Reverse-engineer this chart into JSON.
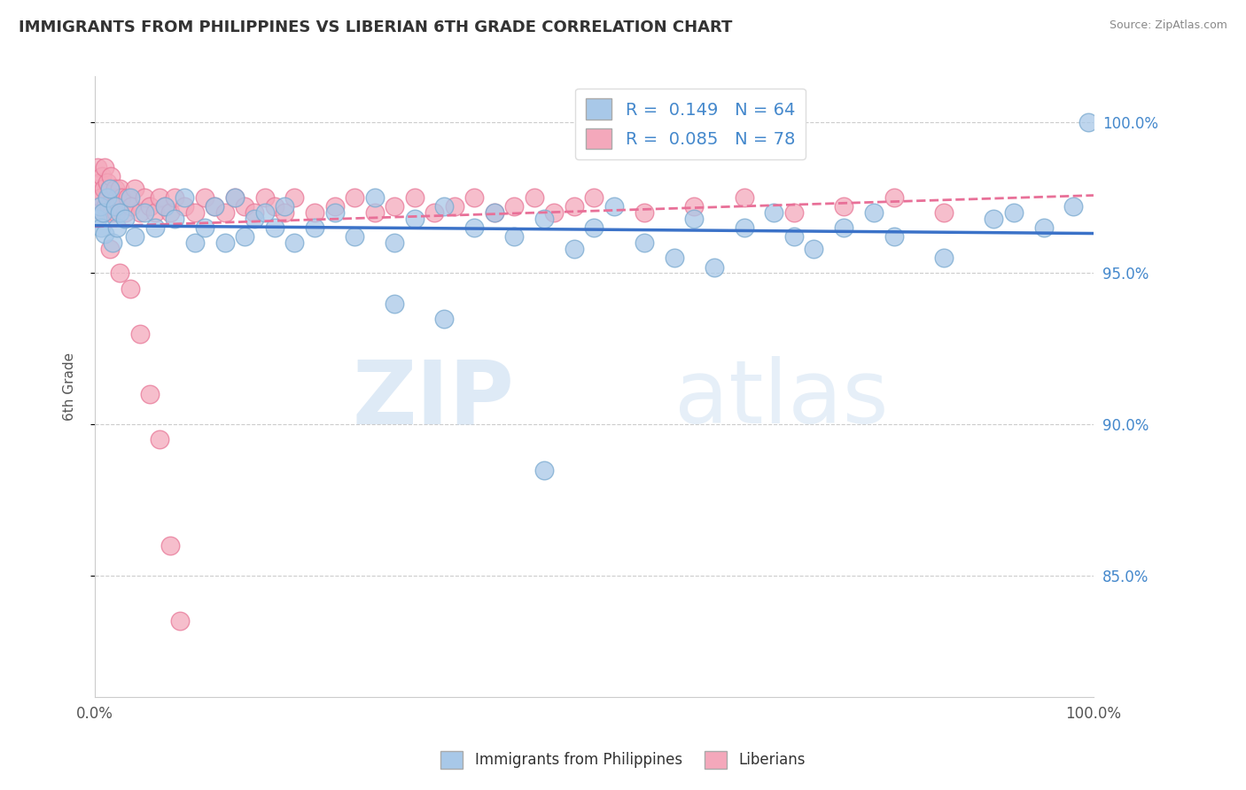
{
  "title": "IMMIGRANTS FROM PHILIPPINES VS LIBERIAN 6TH GRADE CORRELATION CHART",
  "source": "Source: ZipAtlas.com",
  "ylabel": "6th Grade",
  "xmin": 0.0,
  "xmax": 100.0,
  "ymin": 81.0,
  "ymax": 101.5,
  "yticks": [
    85.0,
    90.0,
    95.0,
    100.0
  ],
  "R_blue": 0.149,
  "N_blue": 64,
  "R_pink": 0.085,
  "N_pink": 78,
  "blue_color": "#A8C8E8",
  "pink_color": "#F4A8BB",
  "blue_edge_color": "#7AAAD0",
  "pink_edge_color": "#E87898",
  "blue_line_color": "#3B72C8",
  "pink_line_color": "#E87098",
  "watermark_zip": "ZIP",
  "watermark_atlas": "atlas",
  "blue_dots_x": [
    0.3,
    0.5,
    0.6,
    0.8,
    1.0,
    1.2,
    1.5,
    1.8,
    2.0,
    2.2,
    2.5,
    3.0,
    3.5,
    4.0,
    5.0,
    6.0,
    7.0,
    8.0,
    9.0,
    10.0,
    11.0,
    12.0,
    13.0,
    14.0,
    15.0,
    16.0,
    17.0,
    18.0,
    19.0,
    20.0,
    22.0,
    24.0,
    26.0,
    28.0,
    30.0,
    32.0,
    35.0,
    38.0,
    40.0,
    42.0,
    45.0,
    48.0,
    50.0,
    52.0,
    55.0,
    58.0,
    60.0,
    62.0,
    65.0,
    68.0,
    70.0,
    72.0,
    75.0,
    78.0,
    80.0,
    85.0,
    90.0,
    92.0,
    95.0,
    98.0,
    30.0,
    35.0,
    45.0,
    99.5
  ],
  "blue_dots_y": [
    96.8,
    97.2,
    96.5,
    97.0,
    96.3,
    97.5,
    97.8,
    96.0,
    97.2,
    96.5,
    97.0,
    96.8,
    97.5,
    96.2,
    97.0,
    96.5,
    97.2,
    96.8,
    97.5,
    96.0,
    96.5,
    97.2,
    96.0,
    97.5,
    96.2,
    96.8,
    97.0,
    96.5,
    97.2,
    96.0,
    96.5,
    97.0,
    96.2,
    97.5,
    96.0,
    96.8,
    97.2,
    96.5,
    97.0,
    96.2,
    96.8,
    95.8,
    96.5,
    97.2,
    96.0,
    95.5,
    96.8,
    95.2,
    96.5,
    97.0,
    96.2,
    95.8,
    96.5,
    97.0,
    96.2,
    95.5,
    96.8,
    97.0,
    96.5,
    97.2,
    94.0,
    93.5,
    88.5,
    100.0
  ],
  "pink_dots_x": [
    0.2,
    0.3,
    0.4,
    0.5,
    0.6,
    0.7,
    0.8,
    0.9,
    1.0,
    1.1,
    1.2,
    1.3,
    1.4,
    1.5,
    1.6,
    1.7,
    1.8,
    1.9,
    2.0,
    2.1,
    2.2,
    2.3,
    2.5,
    2.7,
    3.0,
    3.3,
    3.6,
    4.0,
    4.5,
    5.0,
    5.5,
    6.0,
    6.5,
    7.0,
    7.5,
    8.0,
    9.0,
    10.0,
    11.0,
    12.0,
    13.0,
    14.0,
    15.0,
    16.0,
    17.0,
    18.0,
    19.0,
    20.0,
    22.0,
    24.0,
    26.0,
    28.0,
    30.0,
    32.0,
    34.0,
    36.0,
    38.0,
    40.0,
    42.0,
    44.0,
    46.0,
    48.0,
    50.0,
    55.0,
    60.0,
    65.0,
    70.0,
    75.0,
    80.0,
    85.0,
    1.5,
    2.5,
    3.5,
    4.5,
    5.5,
    6.5,
    7.5,
    8.5
  ],
  "pink_dots_y": [
    97.8,
    98.5,
    97.2,
    98.0,
    97.5,
    98.2,
    97.0,
    97.8,
    98.5,
    97.2,
    98.0,
    97.5,
    97.2,
    97.8,
    98.2,
    97.0,
    97.5,
    97.2,
    97.8,
    97.0,
    97.5,
    97.2,
    97.8,
    97.5,
    97.0,
    97.5,
    97.2,
    97.8,
    97.0,
    97.5,
    97.2,
    97.0,
    97.5,
    97.2,
    97.0,
    97.5,
    97.2,
    97.0,
    97.5,
    97.2,
    97.0,
    97.5,
    97.2,
    97.0,
    97.5,
    97.2,
    97.0,
    97.5,
    97.0,
    97.2,
    97.5,
    97.0,
    97.2,
    97.5,
    97.0,
    97.2,
    97.5,
    97.0,
    97.2,
    97.5,
    97.0,
    97.2,
    97.5,
    97.0,
    97.2,
    97.5,
    97.0,
    97.2,
    97.5,
    97.0,
    95.8,
    95.0,
    94.5,
    93.0,
    91.0,
    89.5,
    86.0,
    83.5
  ]
}
